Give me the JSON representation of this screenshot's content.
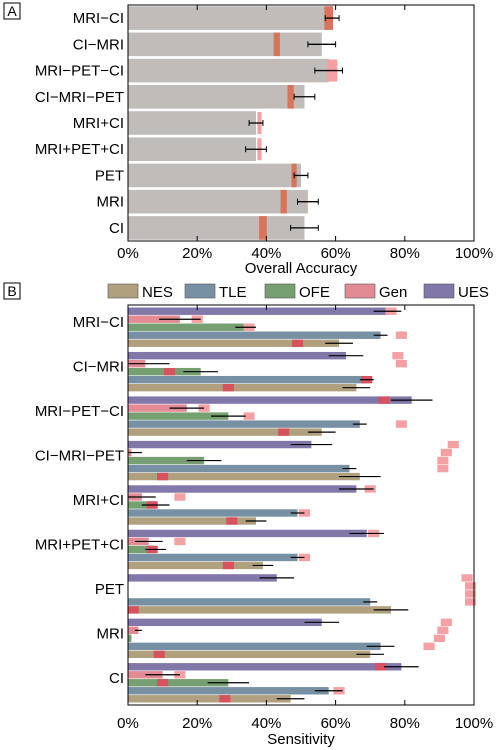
{
  "chart_data": [
    {
      "panel_label": "A",
      "type": "bar",
      "orientation": "horizontal",
      "xlabel": "Overall Accuracy",
      "xlim": [
        0,
        100
      ],
      "x_ticks": [
        "0%",
        "20%",
        "40%",
        "60%",
        "80%",
        "100%"
      ],
      "categories": [
        "MRI−CI",
        "CI−MRI",
        "MRI−PET−CI",
        "CI−MRI−PET",
        "MRI+CI",
        "MRI+PET+CI",
        "PET",
        "MRI",
        "CI"
      ],
      "values": [
        59,
        56,
        58,
        51,
        37,
        37,
        50,
        52,
        51
      ],
      "errors": [
        2,
        4,
        4,
        3,
        2,
        3,
        2,
        3,
        4
      ],
      "chance": [
        58,
        43,
        59,
        47,
        38,
        38,
        48,
        45,
        39
      ],
      "chance_width": [
        2.5,
        1.8,
        3,
        1.8,
        1.2,
        1.2,
        1.5,
        1.8,
        2.2
      ],
      "colors": {
        "bar": "#c0bcba",
        "chance": "#d9735a",
        "chance_nobar": "#f5a0a3"
      }
    },
    {
      "panel_label": "B",
      "type": "bar",
      "orientation": "horizontal",
      "xlabel": "Sensitivity",
      "xlim": [
        0,
        100
      ],
      "x_ticks": [
        "0%",
        "20%",
        "40%",
        "60%",
        "80%",
        "100%"
      ],
      "categories": [
        "MRI−CI",
        "CI−MRI",
        "MRI−PET−CI",
        "CI−MRI−PET",
        "MRI+CI",
        "MRI+PET+CI",
        "PET",
        "MRI",
        "CI"
      ],
      "series": [
        {
          "name": "NES",
          "color": "#b0a07e",
          "values": [
            61,
            66,
            56,
            67,
            37,
            39,
            76,
            70,
            47
          ],
          "errors": [
            4,
            4,
            4,
            6,
            3,
            3,
            5,
            4,
            4
          ],
          "chance": [
            49,
            29,
            45,
            10,
            30,
            29,
            1.5,
            9,
            28
          ]
        },
        {
          "name": "TLE",
          "color": "#7890a3",
          "values": [
            73,
            69,
            67,
            64,
            49,
            49,
            70,
            73,
            58
          ],
          "errors": [
            2,
            2,
            2,
            2,
            2,
            2,
            2,
            4,
            4
          ],
          "chance": [
            79,
            69,
            79,
            91,
            51,
            51,
            99,
            87,
            61
          ]
        },
        {
          "name": "OFE",
          "color": "#76a071",
          "values": [
            34,
            21,
            29,
            22,
            8,
            8,
            0,
            1,
            29
          ],
          "errors": [
            3,
            5,
            5,
            5,
            4,
            3,
            0,
            0,
            6
          ],
          "chance": [
            35,
            12,
            35,
            91,
            7,
            7,
            99,
            90,
            10
          ]
        },
        {
          "name": "Gen",
          "color": "#e28b94",
          "values": [
            15,
            5,
            17,
            1,
            4,
            6,
            0,
            3,
            10
          ],
          "errors": [
            6,
            7,
            5,
            3,
            4,
            4,
            0,
            1,
            5
          ],
          "chance": [
            20,
            79,
            22,
            92,
            15,
            15,
            99,
            91,
            15
          ]
        },
        {
          "name": "UES",
          "color": "#8277a9",
          "values": [
            75,
            63,
            82,
            53,
            66,
            69,
            43,
            56,
            79
          ],
          "errors": [
            4,
            5,
            6,
            6,
            5,
            5,
            5,
            5,
            5
          ],
          "chance": [
            76,
            78,
            74,
            94,
            70,
            71,
            98,
            92,
            73
          ]
        }
      ]
    }
  ]
}
